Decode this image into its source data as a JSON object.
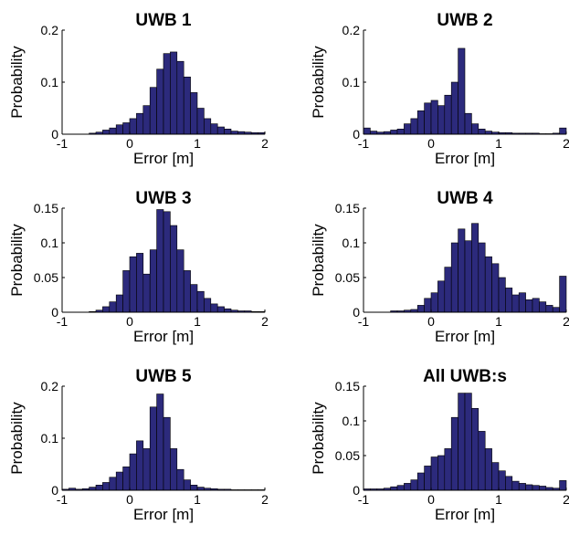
{
  "chart_data": [
    {
      "type": "histogram",
      "title": "UWB 1",
      "x_label": "Error [m]",
      "y_label": "Probability",
      "color": "#2c2a7c",
      "bins": [
        -1,
        -0.9,
        -0.8,
        -0.7,
        -0.6,
        -0.5,
        -0.4,
        -0.3,
        -0.2,
        -0.1,
        0,
        0.1,
        0.2,
        0.3,
        0.4,
        0.5,
        0.6,
        0.7,
        0.8,
        0.9,
        1,
        1.1,
        1.2,
        1.3,
        1.4,
        1.5,
        1.6,
        1.7,
        1.8,
        1.9,
        2
      ],
      "values": [
        0,
        0,
        0,
        0,
        0.002,
        0.004,
        0.008,
        0.012,
        0.018,
        0.022,
        0.03,
        0.04,
        0.055,
        0.09,
        0.125,
        0.155,
        0.158,
        0.14,
        0.11,
        0.08,
        0.05,
        0.03,
        0.02,
        0.014,
        0.01,
        0.006,
        0.005,
        0.004,
        0.003,
        0.003
      ],
      "xlim": [
        -1,
        2
      ],
      "xticks": [
        -1,
        0,
        1,
        2
      ],
      "ylim": [
        0,
        0.2
      ],
      "yticks": [
        0,
        0.1,
        0.2
      ]
    },
    {
      "type": "histogram",
      "title": "UWB 2",
      "x_label": "Error [m]",
      "y_label": "Probability",
      "color": "#2c2a7c",
      "bins": [
        -1,
        -0.9,
        -0.8,
        -0.7,
        -0.6,
        -0.5,
        -0.4,
        -0.3,
        -0.2,
        -0.1,
        0,
        0.1,
        0.2,
        0.3,
        0.4,
        0.5,
        0.6,
        0.7,
        0.8,
        0.9,
        1,
        1.1,
        1.2,
        1.3,
        1.4,
        1.5,
        1.6,
        1.7,
        1.8,
        1.9,
        2
      ],
      "values": [
        0.012,
        0.006,
        0.004,
        0.005,
        0.008,
        0.01,
        0.02,
        0.03,
        0.045,
        0.06,
        0.065,
        0.055,
        0.075,
        0.1,
        0.165,
        0.04,
        0.02,
        0.01,
        0.006,
        0.004,
        0.003,
        0.003,
        0.002,
        0.002,
        0.002,
        0.002,
        0.001,
        0.001,
        0.002,
        0.012
      ],
      "xlim": [
        -1,
        2
      ],
      "xticks": [
        -1,
        0,
        1,
        2
      ],
      "ylim": [
        0,
        0.2
      ],
      "yticks": [
        0,
        0.1,
        0.2
      ]
    },
    {
      "type": "histogram",
      "title": "UWB 3",
      "x_label": "Error [m]",
      "y_label": "Probability",
      "color": "#2c2a7c",
      "bins": [
        -1,
        -0.9,
        -0.8,
        -0.7,
        -0.6,
        -0.5,
        -0.4,
        -0.3,
        -0.2,
        -0.1,
        0,
        0.1,
        0.2,
        0.3,
        0.4,
        0.5,
        0.6,
        0.7,
        0.8,
        0.9,
        1,
        1.1,
        1.2,
        1.3,
        1.4,
        1.5,
        1.6,
        1.7,
        1.8,
        1.9,
        2
      ],
      "values": [
        0,
        0,
        0,
        0,
        0.001,
        0.003,
        0.008,
        0.015,
        0.025,
        0.06,
        0.08,
        0.085,
        0.055,
        0.09,
        0.148,
        0.145,
        0.125,
        0.09,
        0.06,
        0.04,
        0.03,
        0.02,
        0.012,
        0.008,
        0.005,
        0.003,
        0.002,
        0.002,
        0.001,
        0.001
      ],
      "xlim": [
        -1,
        2
      ],
      "xticks": [
        -1,
        0,
        1,
        2
      ],
      "ylim": [
        0,
        0.15
      ],
      "yticks": [
        0,
        0.05,
        0.1,
        0.15
      ]
    },
    {
      "type": "histogram",
      "title": "UWB 4",
      "x_label": "Error [m]",
      "y_label": "Probability",
      "color": "#2c2a7c",
      "bins": [
        -1,
        -0.9,
        -0.8,
        -0.7,
        -0.6,
        -0.5,
        -0.4,
        -0.3,
        -0.2,
        -0.1,
        0,
        0.1,
        0.2,
        0.3,
        0.4,
        0.5,
        0.6,
        0.7,
        0.8,
        0.9,
        1,
        1.1,
        1.2,
        1.3,
        1.4,
        1.5,
        1.6,
        1.7,
        1.8,
        1.9,
        2
      ],
      "values": [
        0,
        0,
        0,
        0,
        0.002,
        0.002,
        0.003,
        0.004,
        0.01,
        0.02,
        0.028,
        0.045,
        0.065,
        0.1,
        0.12,
        0.103,
        0.128,
        0.1,
        0.08,
        0.07,
        0.05,
        0.035,
        0.025,
        0.028,
        0.018,
        0.02,
        0.015,
        0.01,
        0.007,
        0.052
      ],
      "xlim": [
        -1,
        2
      ],
      "xticks": [
        -1,
        0,
        1,
        2
      ],
      "ylim": [
        0,
        0.15
      ],
      "yticks": [
        0,
        0.05,
        0.1,
        0.15
      ]
    },
    {
      "type": "histogram",
      "title": "UWB 5",
      "x_label": "Error [m]",
      "y_label": "Probability",
      "color": "#2c2a7c",
      "bins": [
        -1,
        -0.9,
        -0.8,
        -0.7,
        -0.6,
        -0.5,
        -0.4,
        -0.3,
        -0.2,
        -0.1,
        0,
        0.1,
        0.2,
        0.3,
        0.4,
        0.5,
        0.6,
        0.7,
        0.8,
        0.9,
        1,
        1.1,
        1.2,
        1.3,
        1.4,
        1.5,
        1.6,
        1.7,
        1.8,
        1.9,
        2
      ],
      "values": [
        0.002,
        0.004,
        0.002,
        0.003,
        0.006,
        0.01,
        0.015,
        0.025,
        0.035,
        0.045,
        0.07,
        0.095,
        0.08,
        0.16,
        0.185,
        0.14,
        0.08,
        0.04,
        0.02,
        0.01,
        0.006,
        0.004,
        0.003,
        0.002,
        0.002,
        0.001,
        0.001,
        0.001,
        0.001,
        0.001
      ],
      "xlim": [
        -1,
        2
      ],
      "xticks": [
        -1,
        0,
        1,
        2
      ],
      "ylim": [
        0,
        0.2
      ],
      "yticks": [
        0,
        0.1,
        0.2
      ]
    },
    {
      "type": "histogram",
      "title": "All UWB:s",
      "x_label": "Error [m]",
      "y_label": "Probability",
      "color": "#2c2a7c",
      "bins": [
        -1,
        -0.9,
        -0.8,
        -0.7,
        -0.6,
        -0.5,
        -0.4,
        -0.3,
        -0.2,
        -0.1,
        0,
        0.1,
        0.2,
        0.3,
        0.4,
        0.5,
        0.6,
        0.7,
        0.8,
        0.9,
        1,
        1.1,
        1.2,
        1.3,
        1.4,
        1.5,
        1.6,
        1.7,
        1.8,
        1.9,
        2
      ],
      "values": [
        0.002,
        0.002,
        0.002,
        0.003,
        0.005,
        0.007,
        0.01,
        0.015,
        0.025,
        0.035,
        0.048,
        0.05,
        0.06,
        0.105,
        0.14,
        0.14,
        0.118,
        0.085,
        0.06,
        0.04,
        0.028,
        0.02,
        0.013,
        0.01,
        0.008,
        0.007,
        0.006,
        0.004,
        0.003,
        0.014
      ],
      "xlim": [
        -1,
        2
      ],
      "xticks": [
        -1,
        0,
        1,
        2
      ],
      "ylim": [
        0,
        0.15
      ],
      "yticks": [
        0,
        0.05,
        0.1,
        0.15
      ]
    }
  ]
}
